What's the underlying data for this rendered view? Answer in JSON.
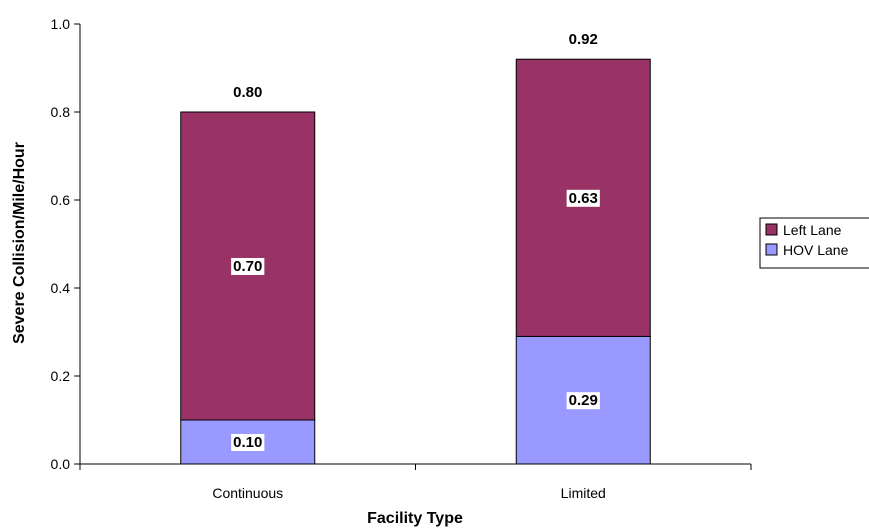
{
  "chart_data": {
    "type": "bar",
    "stacked": true,
    "categories": [
      "Continuous",
      "Limited"
    ],
    "series": [
      {
        "name": "HOV Lane",
        "values": [
          0.1,
          0.29
        ],
        "color": "#9999FF"
      },
      {
        "name": "Left Lane",
        "values": [
          0.7,
          0.63
        ],
        "color": "#993366"
      }
    ],
    "totals": [
      0.8,
      0.92
    ],
    "xlabel": "Facility Type",
    "ylabel": "Severe Collision/Mile/Hour",
    "ylim": [
      0,
      1.0
    ],
    "yticks": [
      "0.0",
      "0.2",
      "0.4",
      "0.6",
      "0.8",
      "1.0"
    ],
    "grid": false,
    "legend_position": "right",
    "legend_order": [
      "Left Lane",
      "HOV Lane"
    ]
  }
}
